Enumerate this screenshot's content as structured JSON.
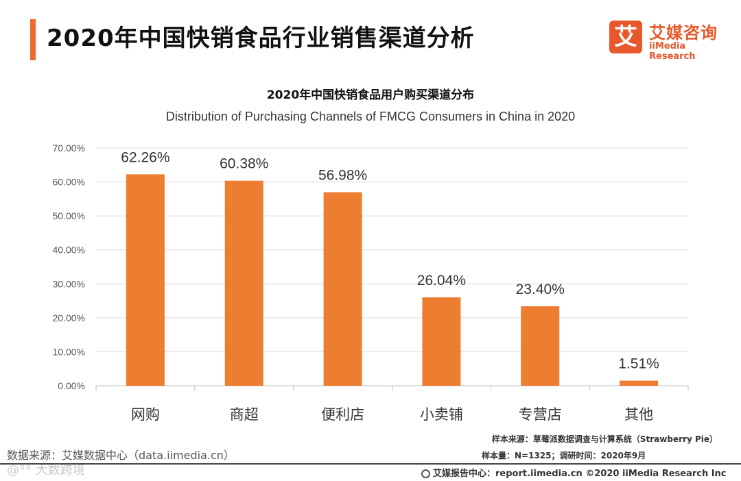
{
  "header": {
    "title": "2020年中国快销食品行业销售渠道分析",
    "accent_color": "#EF6A2E"
  },
  "logo": {
    "mark": "艾",
    "name_cn": "艾媒咨询",
    "name_en": "iiMedia Research",
    "color": "#E8582A"
  },
  "chart_data": {
    "type": "bar",
    "title": "2020年中国快销食品用户购买渠道分布",
    "subtitle": "Distribution of Purchasing Channels of FMCG Consumers in China in 2020",
    "categories": [
      "网购",
      "商超",
      "便利店",
      "小卖铺",
      "专营店",
      "其他"
    ],
    "values": [
      62.26,
      60.38,
      56.98,
      26.04,
      23.4,
      1.51
    ],
    "value_labels": [
      "62.26%",
      "60.38%",
      "56.98%",
      "26.04%",
      "23.40%",
      "1.51%"
    ],
    "y_ticks": [
      "0.00%",
      "10.00%",
      "20.00%",
      "30.00%",
      "40.00%",
      "50.00%",
      "60.00%",
      "70.00%"
    ],
    "ylim": [
      0,
      70
    ],
    "xlabel": "",
    "ylabel": "",
    "grid": true,
    "bar_color": "#ED7D31"
  },
  "footer": {
    "source": "数据来源：艾媒数据中心（data.iimedia.cn）",
    "watermark": "@°° 大数跨境",
    "sample_source": "样本来源：草莓派数据调查与计算系统（Strawberry Pie）",
    "sample_size": "样本量：N=1325；调研时间：2020年9月",
    "report": "艾媒报告中心：report.iimedia.cn  ©2020  iiMedia Research  Inc"
  }
}
